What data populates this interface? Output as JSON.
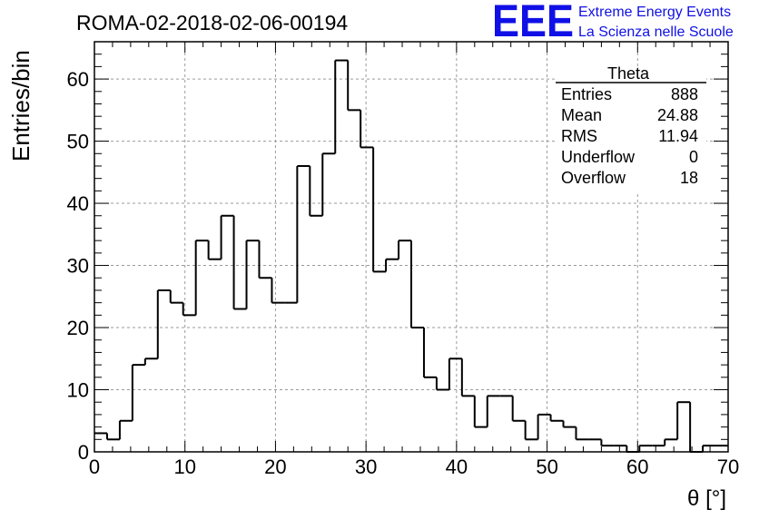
{
  "header": {
    "run_title": "ROMA-02-2018-02-06-00194",
    "logo": "EEE",
    "subtitle_line1": "Extreme Energy Events",
    "subtitle_line2": "La Scienza nelle Scuole"
  },
  "stats": {
    "title": "Theta",
    "rows": [
      {
        "label": "Entries",
        "value": "888"
      },
      {
        "label": "Mean",
        "value": "24.88"
      },
      {
        "label": "RMS",
        "value": "11.94"
      },
      {
        "label": "Underflow",
        "value": "0"
      },
      {
        "label": "Overflow",
        "value": "18"
      }
    ]
  },
  "chart_data": {
    "type": "histogram",
    "xlabel": "θ [°]",
    "ylabel": "Entries/bin",
    "xlim": [
      0,
      70
    ],
    "ylim": [
      0,
      66
    ],
    "bin_width": 1.4,
    "xticks": [
      0,
      10,
      20,
      30,
      40,
      50,
      60,
      70
    ],
    "yticks": [
      0,
      10,
      20,
      30,
      40,
      50,
      60
    ],
    "grid": true,
    "legend": "stats-box-top-right",
    "values": [
      3,
      2,
      5,
      14,
      15,
      26,
      24,
      22,
      34,
      31,
      38,
      23,
      34,
      28,
      24,
      24,
      46,
      38,
      48,
      63,
      55,
      49,
      29,
      31,
      34,
      20,
      12,
      10,
      15,
      9,
      4,
      9,
      9,
      5,
      2,
      6,
      5,
      4,
      2,
      2,
      1,
      1,
      0,
      1,
      1,
      2,
      8,
      0,
      1,
      1
    ]
  }
}
